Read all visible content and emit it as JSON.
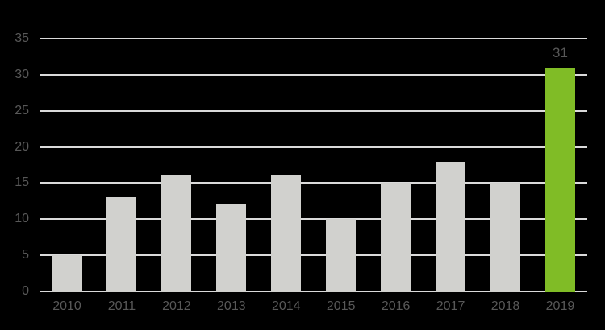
{
  "chart_data": {
    "type": "bar",
    "title": "",
    "xlabel": "",
    "ylabel": "",
    "categories": [
      "2010",
      "2011",
      "2012",
      "2013",
      "2014",
      "2015",
      "2016",
      "2017",
      "2018",
      "2019"
    ],
    "values": [
      5,
      13,
      16,
      12,
      16,
      10,
      15,
      18,
      15,
      31
    ],
    "ylim": [
      0,
      35
    ],
    "yticks": [
      0,
      5,
      10,
      15,
      20,
      25,
      30,
      35
    ],
    "grid": true,
    "legend": false,
    "highlight_category": "2019",
    "data_labels": [
      {
        "category": "2019",
        "text": "31"
      }
    ]
  },
  "colors": {
    "background": "#000000",
    "bar": "#d1d1ce",
    "bar_highlight": "#80bc26",
    "gridline": "#dadada",
    "axis_line": "#dadada",
    "tick_text": "#585858",
    "data_label_text": "#585858"
  }
}
